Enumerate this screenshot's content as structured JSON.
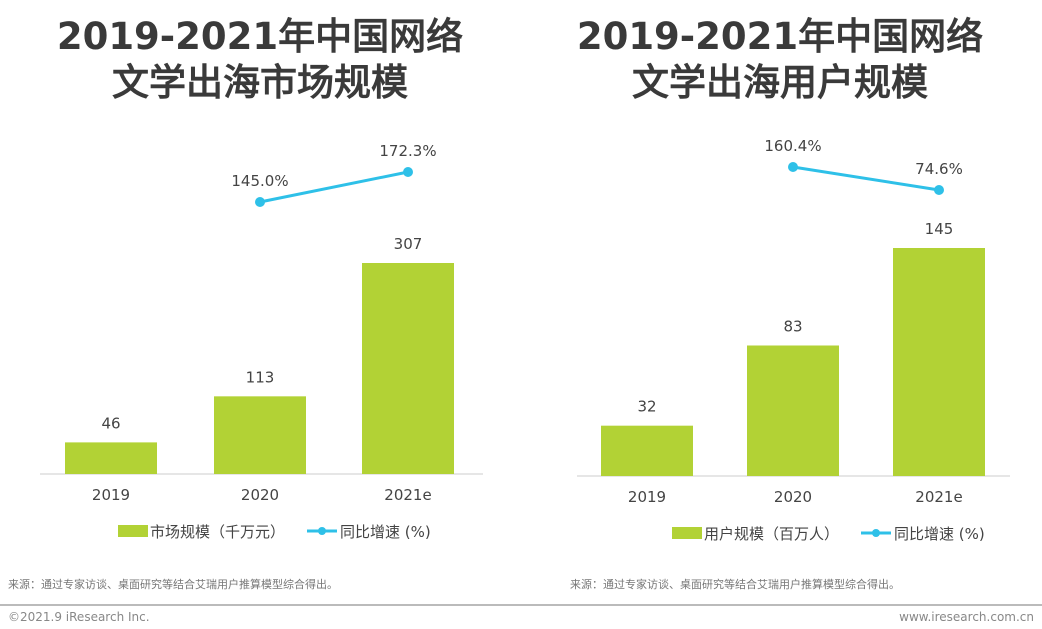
{
  "colors": {
    "bar": "#b2d235",
    "line": "#2ec0e8",
    "axis": "#cccccc",
    "text": "#444444"
  },
  "chart_data": [
    {
      "type": "bar+line",
      "title_line1": "2019-2021年中国网络",
      "title_line2": "文学出海市场规模",
      "categories": [
        "2019",
        "2020",
        "2021e"
      ],
      "series": [
        {
          "name": "市场规模（千万元）",
          "type": "bar",
          "values": [
            46,
            113,
            307
          ],
          "labels": [
            "46",
            "113",
            "307"
          ]
        },
        {
          "name": "同比增速 (%)",
          "type": "line",
          "values": [
            null,
            145.0,
            172.3
          ],
          "labels": [
            "",
            "145.0%",
            "172.3%"
          ]
        }
      ],
      "legend_position": "bottom",
      "grid": false,
      "source": "来源：通过专家访谈、桌面研究等结合艾瑞用户推算模型综合得出。"
    },
    {
      "type": "bar+line",
      "title_line1": "2019-2021年中国网络",
      "title_line2": "文学出海用户规模",
      "categories": [
        "2019",
        "2020",
        "2021e"
      ],
      "series": [
        {
          "name": "用户规模（百万人）",
          "type": "bar",
          "values": [
            32,
            83,
            145
          ],
          "labels": [
            "32",
            "83",
            "145"
          ]
        },
        {
          "name": "同比增速 (%)",
          "type": "line",
          "values": [
            null,
            160.4,
            74.6
          ],
          "labels": [
            "",
            "160.4%",
            "74.6%"
          ]
        }
      ],
      "legend_position": "bottom",
      "grid": false,
      "source": "来源：通过专家访谈、桌面研究等结合艾瑞用户推算模型综合得出。"
    }
  ],
  "footer": {
    "copyright": "©2021.9 iResearch Inc.",
    "website": "www.iresearch.com.cn"
  }
}
